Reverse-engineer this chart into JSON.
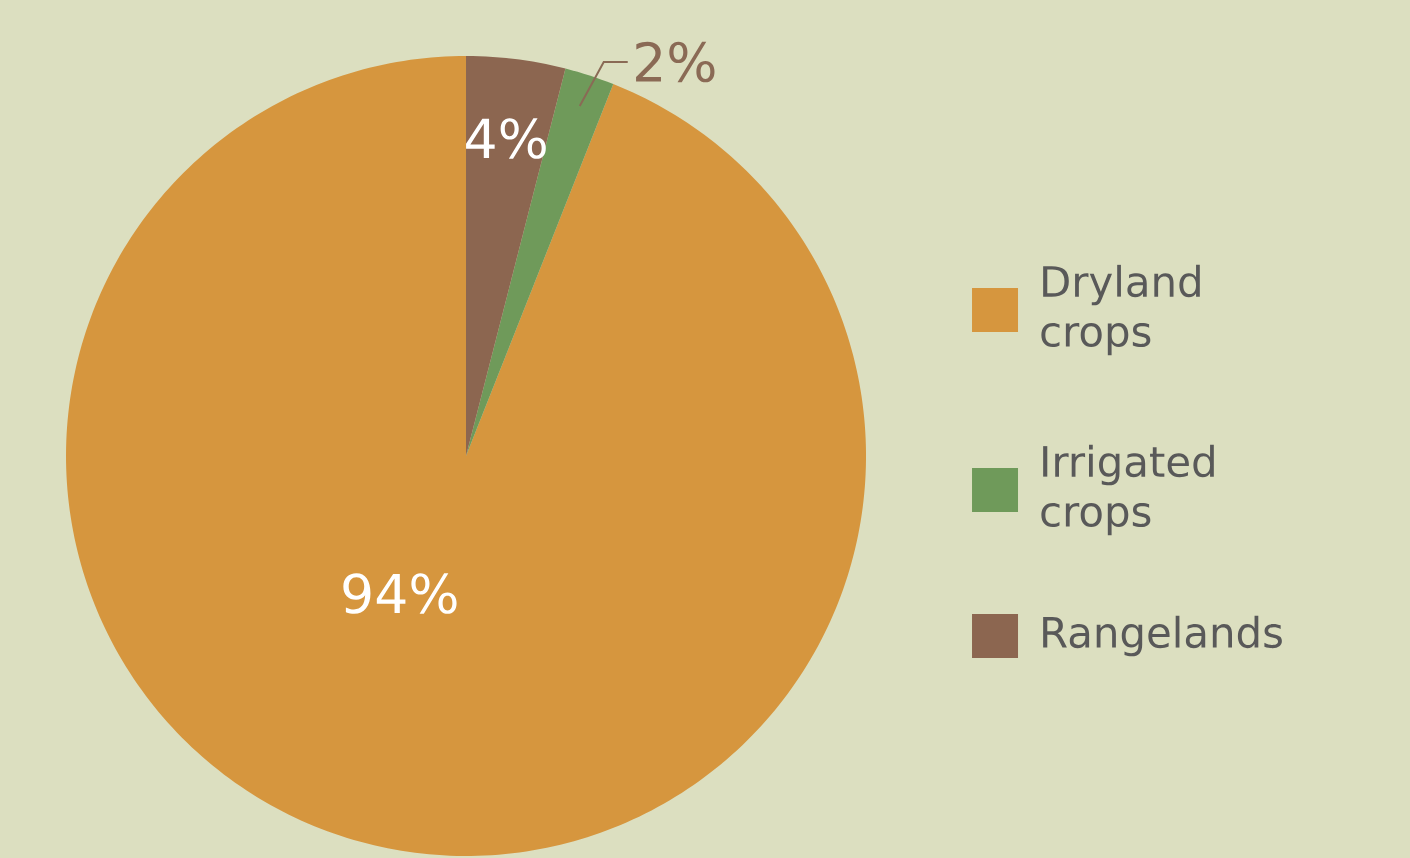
{
  "chart_data": {
    "type": "pie",
    "categories": [
      "Dryland crops",
      "Irrigated crops",
      "Rangelands"
    ],
    "values": [
      94,
      2,
      4
    ],
    "colors": [
      "#d6963e",
      "#6f9a5a",
      "#8c6650"
    ],
    "value_labels": [
      "94%",
      "2%",
      "4%"
    ],
    "legend": "right"
  }
}
